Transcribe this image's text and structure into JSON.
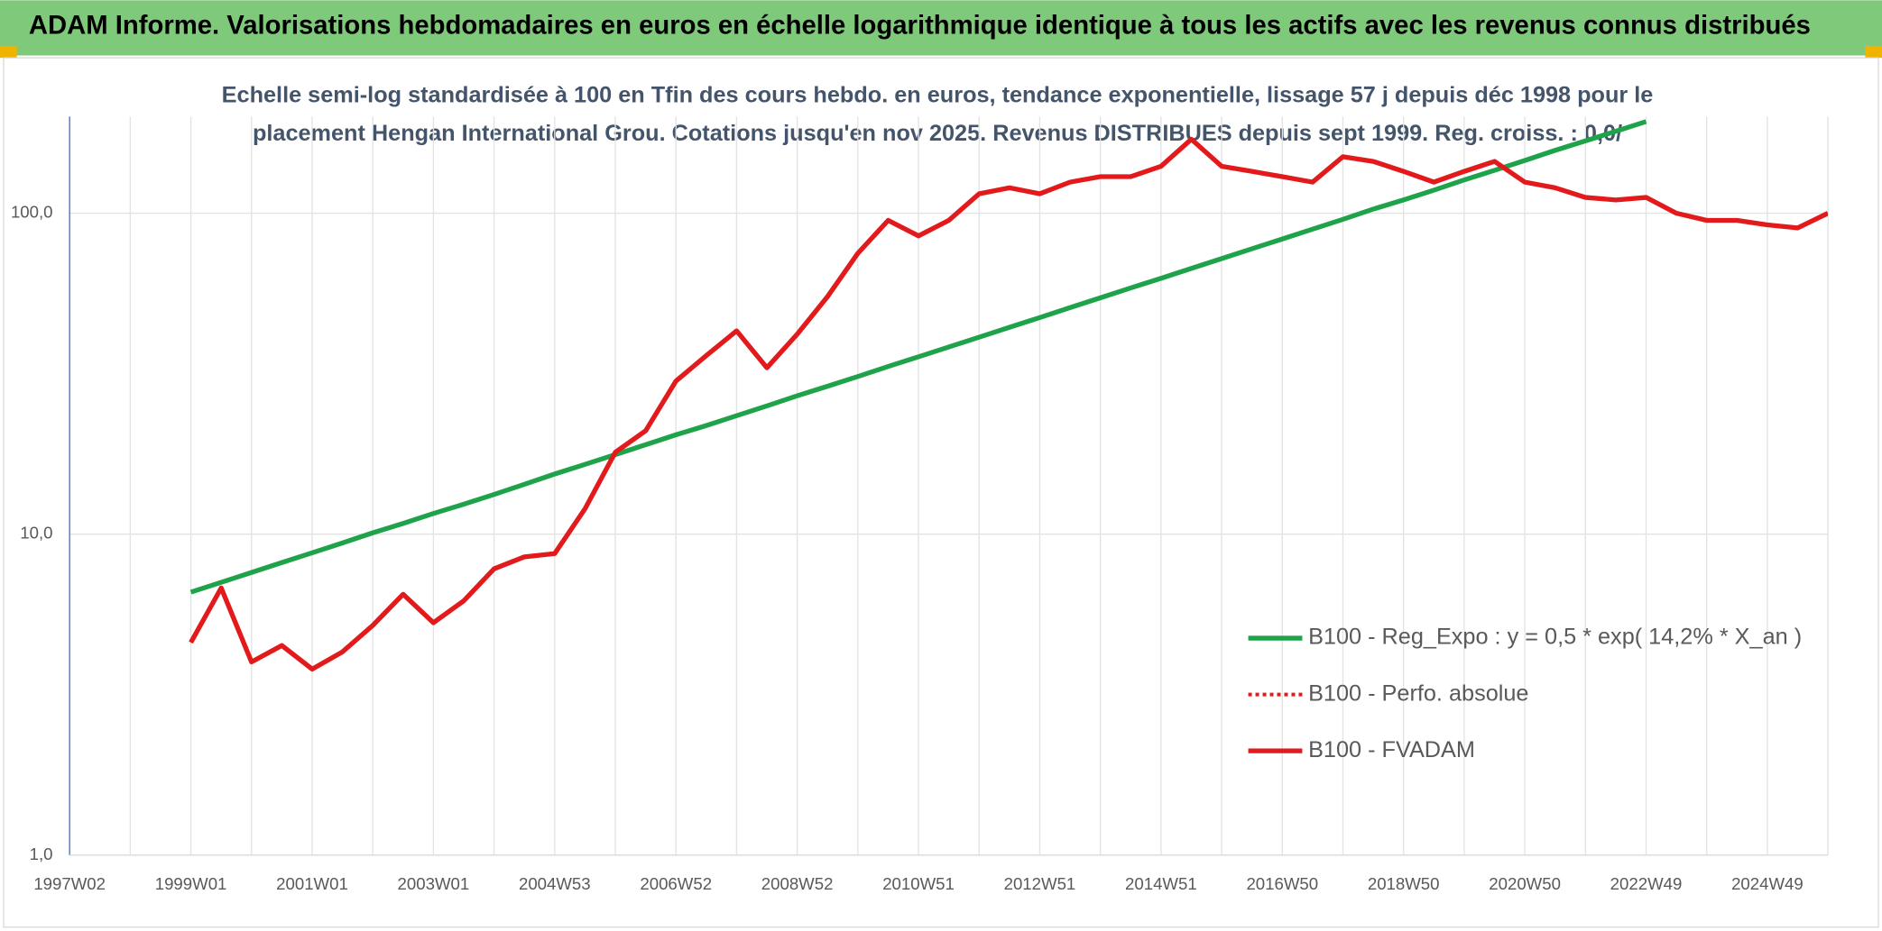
{
  "chart_data": {
    "type": "line",
    "title": "ADAM Informe. Valorisations hebdomadaires en euros en échelle logarithmique identique à tous les actifs avec les revenus connus distribués",
    "subtitle_lines": [
      "Echelle semi-log standardisée à 100 en Tfin des cours hebdo. en euros, tendance exponentielle, lissage 57 j depuis déc 1998 pour le",
      "placement Hengan International Grou. Cotations jusqu'en nov 2025. Revenus DISTRIBUES depuis sept 1999. Reg. croiss. : 0,0/"
    ],
    "categories": [
      "1997W02",
      null,
      null,
      null,
      "1999W01",
      null,
      null,
      null,
      "2001W01",
      null,
      null,
      null,
      "2003W01",
      null,
      null,
      null,
      "2004W53",
      null,
      null,
      null,
      "2006W52",
      null,
      null,
      null,
      "2008W52",
      null,
      null,
      null,
      "2010W51",
      null,
      null,
      null,
      "2012W51",
      null,
      null,
      null,
      "2014W51",
      null,
      null,
      null,
      "2016W50",
      null,
      null,
      null,
      "2018W50",
      null,
      null,
      null,
      "2020W50",
      null,
      null,
      null,
      "2022W49",
      null,
      null,
      null,
      "2024W49",
      null,
      null
    ],
    "ylog": true,
    "ylim": [
      1,
      200
    ],
    "yticks": [
      {
        "value": 1,
        "label": "1,0"
      },
      {
        "value": 10,
        "label": "10,0"
      },
      {
        "value": 100,
        "label": "100,0"
      }
    ],
    "grid": true,
    "series": [
      {
        "name": "B100 - Reg_Expo : y = 0,5 * exp( 14,2% *  X_an )",
        "color": "#1fa34a",
        "dash": "solid",
        "values": [
          null,
          null,
          null,
          null,
          6.6,
          7.08,
          7.6,
          8.16,
          8.75,
          9.39,
          10.1,
          10.8,
          11.6,
          12.4,
          13.3,
          14.3,
          15.4,
          16.5,
          17.7,
          19.0,
          20.4,
          21.8,
          23.4,
          25.1,
          27.0,
          28.9,
          31.0,
          33.3,
          35.7,
          38.3,
          41.1,
          44.1,
          47.3,
          50.8,
          54.5,
          58.5,
          62.7,
          67.3,
          72.2,
          77.5,
          83.1,
          89.2,
          95.7,
          103,
          110,
          118,
          127,
          136,
          146,
          157,
          168,
          180,
          193,
          null,
          null,
          null,
          null,
          null,
          null
        ]
      },
      {
        "name": "B100 - Perfo. absolue",
        "color": "#e31a1c",
        "dash": "dotted",
        "values": [
          null,
          null,
          null,
          null,
          4.6,
          6.8,
          4.0,
          4.5,
          3.8,
          4.3,
          5.2,
          6.5,
          5.3,
          6.2,
          7.8,
          8.5,
          8.7,
          12,
          18,
          21,
          30,
          36,
          43,
          33,
          42,
          55,
          75,
          95,
          85,
          95,
          115,
          120,
          115,
          125,
          130,
          130,
          140,
          170,
          140,
          135,
          130,
          125,
          150,
          145,
          135,
          125,
          135,
          145,
          125,
          120,
          112,
          110,
          112,
          100,
          95,
          95,
          92,
          90,
          100
        ]
      },
      {
        "name": "B100 - FVADAM",
        "color": "#e31a1c",
        "dash": "solid",
        "values": [
          null,
          null,
          null,
          null,
          4.6,
          6.8,
          4.0,
          4.5,
          3.8,
          4.3,
          5.2,
          6.5,
          5.3,
          6.2,
          7.8,
          8.5,
          8.7,
          12,
          18,
          21,
          30,
          36,
          43,
          33,
          42,
          55,
          75,
          95,
          85,
          95,
          115,
          120,
          115,
          125,
          130,
          130,
          140,
          170,
          140,
          135,
          130,
          125,
          150,
          145,
          135,
          125,
          135,
          145,
          125,
          120,
          112,
          110,
          112,
          100,
          95,
          95,
          92,
          90,
          100
        ]
      }
    ]
  }
}
